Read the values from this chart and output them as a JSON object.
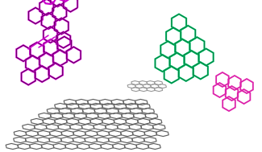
{
  "bg_color": "#ffffff",
  "sheet_color": "#606060",
  "purple_color": "#cc00cc",
  "purple_dark": "#330033",
  "green_color": "#00bb66",
  "green_dark": "#006633",
  "pink_color": "#dd22aa",
  "gray_mol_color": "#999999",
  "lw_sheet": 0.85,
  "lw_purple": 1.6,
  "lw_green": 1.5,
  "lw_pink": 1.3,
  "lw_gray": 0.8
}
